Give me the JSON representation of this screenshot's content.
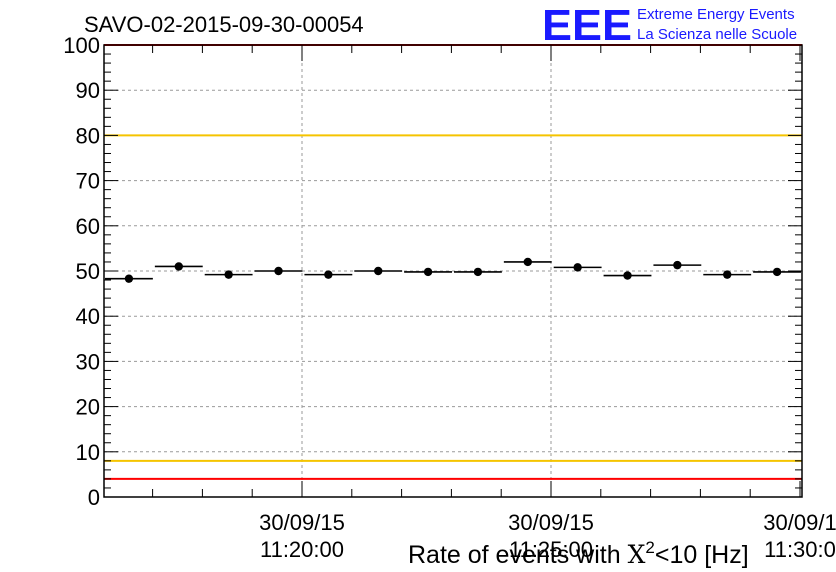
{
  "header": {
    "run_title": "SAVO-02-2015-09-30-00054",
    "logo_text": "EEE",
    "logo_line1": "Extreme Energy Events",
    "logo_line2": "La Scienza nelle Scuole"
  },
  "colors": {
    "logo_blue": "#1a1aff",
    "red_limit": "#ff0000",
    "yellow_limit": "#f5c400",
    "marker": "#000000",
    "grid": "#9a9a9a"
  },
  "chart_data": {
    "type": "scatter",
    "title": "SAVO-02-2015-09-30-00054",
    "xlabel_prefix": "Rate of events with ",
    "xlabel_chi": "X",
    "xlabel_sup": "2",
    "xlabel_suffix": "<10 [Hz]",
    "ylabel": "",
    "ylim": [
      0,
      100
    ],
    "yticks": [
      0,
      10,
      20,
      30,
      40,
      50,
      60,
      70,
      80,
      90,
      100
    ],
    "xrange_minutes": [
      0,
      0.5
    ],
    "x_ticks": [
      {
        "date": "30/09/15",
        "time": "11:20:00"
      },
      {
        "date": "30/09/15",
        "time": "11:25:00"
      },
      {
        "date": "30/09/1",
        "time": "11:30:0"
      }
    ],
    "grid": true,
    "reference_lines": [
      {
        "y": 4,
        "color": "#ff0000"
      },
      {
        "y": 8,
        "color": "#f5c400"
      },
      {
        "y": 80,
        "color": "#f5c400"
      },
      {
        "y": 100,
        "color": "#ff0000"
      }
    ],
    "series": [
      {
        "values": [
          48.3,
          51.0,
          49.2,
          50.0,
          49.2,
          50.0,
          49.8,
          49.8,
          52.0,
          50.8,
          49.0,
          51.3,
          49.2,
          49.8
        ]
      }
    ]
  }
}
